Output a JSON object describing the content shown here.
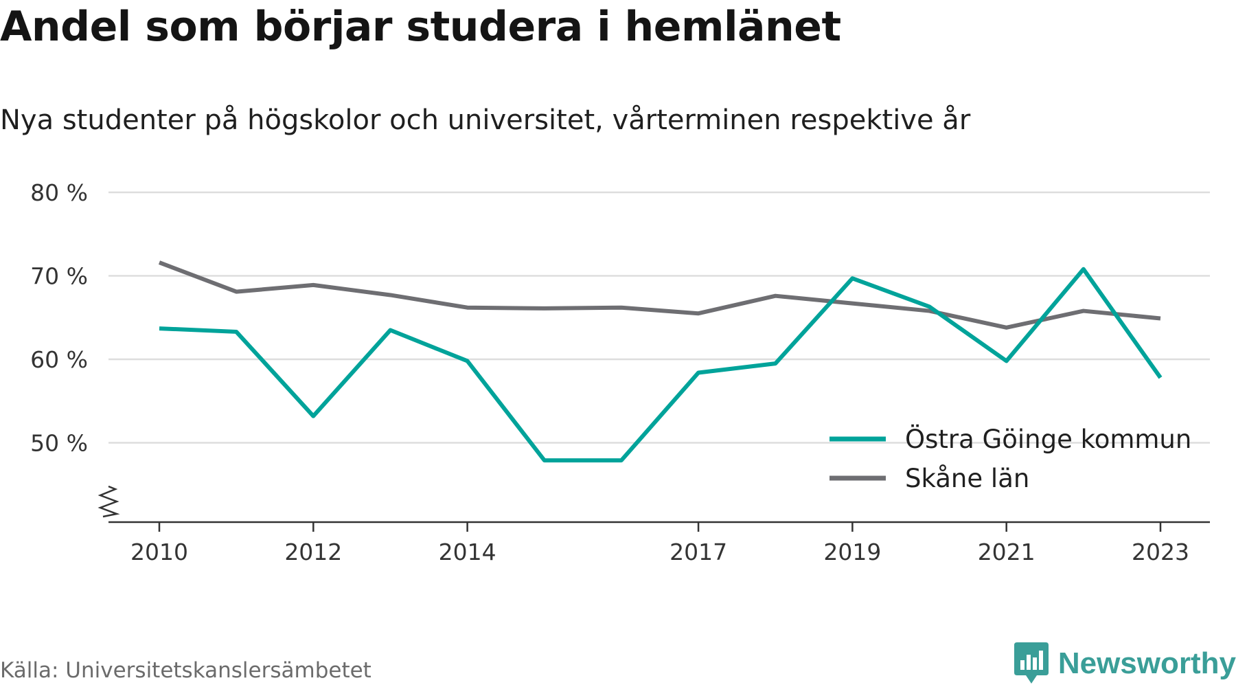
{
  "title": "Andel som börjar studera i hemlänet",
  "subtitle": "Nya studenter på högskolor och universitet, vårterminen respektive år",
  "source": "Källa: Universitetskanslersämbetet",
  "logo_text": "Newsworthy",
  "colors": {
    "series_1": "#00a39a",
    "series_2": "#6e6e72",
    "grid": "#dddddd",
    "axis": "#333333",
    "logo": "#3a9e98"
  },
  "chart_data": {
    "type": "line",
    "x": [
      2010,
      2011,
      2012,
      2013,
      2014,
      2015,
      2016,
      2017,
      2018,
      2019,
      2020,
      2021,
      2022,
      2023
    ],
    "x_ticks": [
      "2010",
      "2012",
      "2014",
      "2017",
      "2019",
      "2021",
      "2023"
    ],
    "y_ticks": [
      "80 %",
      "70 %",
      "60 %",
      "50 %"
    ],
    "y_tick_values": [
      80,
      70,
      60,
      50
    ],
    "ylim": [
      40.5,
      80
    ],
    "y_axis_break": true,
    "grid": true,
    "legend_position": "bottom-right",
    "series": [
      {
        "name": "Östra Göinge kommun",
        "color": "#00a39a",
        "values": [
          63.7,
          63.3,
          53.2,
          63.5,
          59.8,
          47.9,
          47.9,
          58.4,
          59.5,
          69.7,
          66.3,
          59.8,
          70.8,
          57.8
        ]
      },
      {
        "name": "Skåne län",
        "color": "#6e6e72",
        "values": [
          71.6,
          68.1,
          68.9,
          67.7,
          66.2,
          66.1,
          66.2,
          65.5,
          67.6,
          66.7,
          65.8,
          63.8,
          65.8,
          64.9
        ]
      }
    ]
  }
}
